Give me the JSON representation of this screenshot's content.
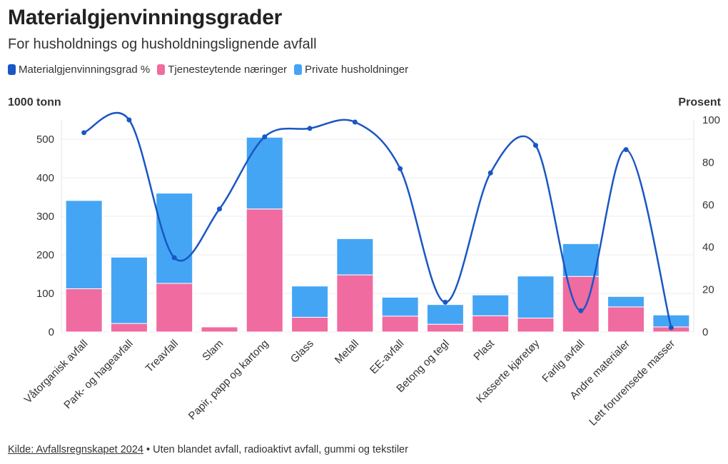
{
  "title": "Materialgjenvinningsgrader",
  "subtitle": "For husholdnings og husholdningslignende avfall",
  "legend": [
    {
      "label": "Materialgjenvinningsgrad %",
      "color": "#1a56c4"
    },
    {
      "label": "Tjenesteytende næringer",
      "color": "#f06ba0"
    },
    {
      "label": "Private husholdninger",
      "color": "#44a5f5"
    }
  ],
  "axis": {
    "left_title": "1000 tonn",
    "right_title": "Prosent"
  },
  "footer": {
    "source": "Kilde: Avfallsregnskapet 2024",
    "note": " • Uten blandet avfall, radioaktivt avfall, gummi og tekstiler"
  },
  "chart_data": {
    "type": "bar",
    "stacked": true,
    "categories": [
      "Våtorganisk avfall",
      "Park- og hageavfall",
      "Treavfall",
      "Slam",
      "Papir, papp og kartong",
      "Glass",
      "Metall",
      "EE-avfall",
      "Betong og tegl",
      "Plast",
      "Kasserte kjøretøy",
      "Farlig avfall",
      "Andre materialer",
      "Lett forurensede masser"
    ],
    "series": [
      {
        "name": "Tjenesteytende næringer",
        "color": "#f06ba0",
        "values": [
          112,
          22,
          126,
          13,
          319,
          38,
          148,
          41,
          20,
          42,
          36,
          144,
          65,
          13
        ]
      },
      {
        "name": "Private husholdninger",
        "color": "#44a5f5",
        "values": [
          229,
          172,
          234,
          0,
          186,
          81,
          94,
          49,
          51,
          54,
          109,
          85,
          27,
          31
        ]
      }
    ],
    "line": {
      "name": "Materialgjenvinningsgrad %",
      "color": "#1a56c4",
      "axis": "right",
      "values": [
        94,
        100,
        35,
        58,
        92,
        96,
        99,
        77,
        14,
        75,
        88,
        10,
        86,
        2
      ]
    },
    "ylim": [
      0,
      550
    ],
    "yticks": [
      0,
      100,
      200,
      300,
      400,
      500
    ],
    "y2lim": [
      0,
      100
    ],
    "y2ticks": [
      0,
      20,
      40,
      60,
      80,
      100
    ],
    "ylabel": "1000 tonn",
    "y2label": "Prosent",
    "grid": true
  }
}
